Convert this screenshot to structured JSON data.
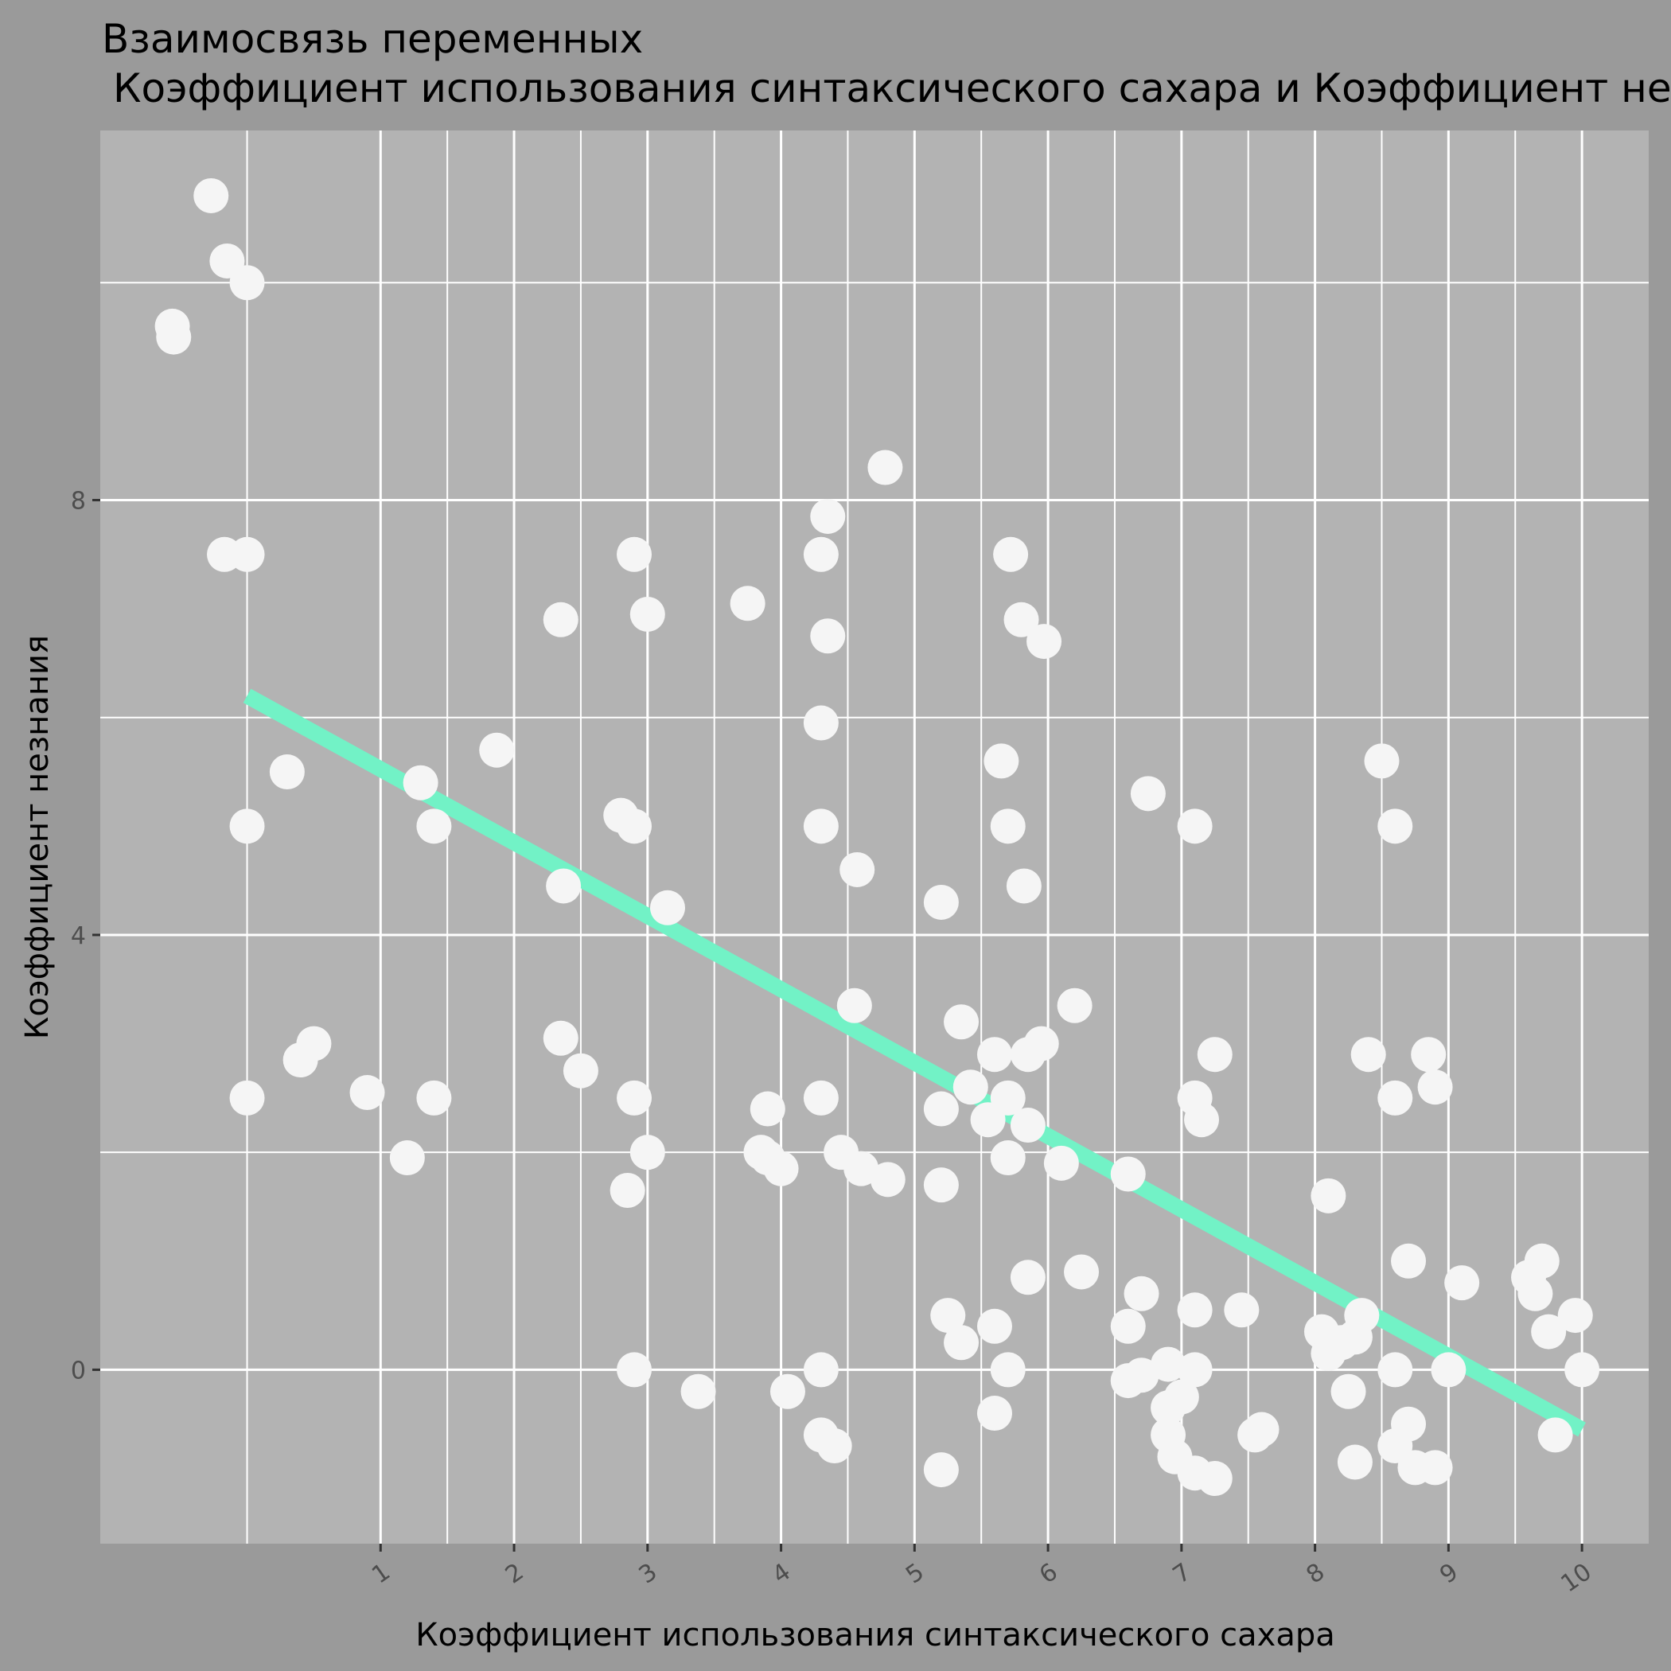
{
  "chart_data": {
    "type": "scatter",
    "title": "Взаимосвязь переменных",
    "subtitle": "Коэффициент использования синтаксического сахара и Коэффициент незнания",
    "xlabel": "Коэффициент использования синтаксического сахара",
    "ylabel": "Коэффициент незнания",
    "xlim": [
      -1.1,
      10.5
    ],
    "ylim": [
      -1.6,
      11.4
    ],
    "x_ticks": [
      1,
      2,
      3,
      4,
      5,
      6,
      7,
      8,
      9,
      10
    ],
    "y_ticks": [
      0,
      4,
      8
    ],
    "grid": true,
    "legend": "none",
    "colors": {
      "background": "#9a9a9a",
      "panel": "#b3b3b3",
      "grid": "#ffffff",
      "points": "#f5f5f5",
      "trend": "#72f2c6"
    },
    "trend_line": {
      "x": [
        0,
        10
      ],
      "y": [
        6.2,
        -0.55
      ]
    },
    "points": [
      {
        "x": -0.27,
        "y": 10.8
      },
      {
        "x": -0.15,
        "y": 10.2
      },
      {
        "x": 0.0,
        "y": 10.0
      },
      {
        "x": -0.56,
        "y": 9.6
      },
      {
        "x": -0.55,
        "y": 9.5
      },
      {
        "x": -0.17,
        "y": 7.5
      },
      {
        "x": 0.0,
        "y": 7.5
      },
      {
        "x": 0.3,
        "y": 5.5
      },
      {
        "x": 0.0,
        "y": 5.0
      },
      {
        "x": 0.5,
        "y": 3.0
      },
      {
        "x": 0.4,
        "y": 2.85
      },
      {
        "x": 0.0,
        "y": 2.5
      },
      {
        "x": 0.9,
        "y": 2.55
      },
      {
        "x": 1.2,
        "y": 1.95
      },
      {
        "x": 1.3,
        "y": 5.4
      },
      {
        "x": 1.4,
        "y": 5.0
      },
      {
        "x": 1.4,
        "y": 2.5
      },
      {
        "x": 1.87,
        "y": 5.7
      },
      {
        "x": 2.35,
        "y": 6.9
      },
      {
        "x": 2.37,
        "y": 4.45
      },
      {
        "x": 2.35,
        "y": 3.05
      },
      {
        "x": 2.5,
        "y": 2.75
      },
      {
        "x": 2.8,
        "y": 5.1
      },
      {
        "x": 2.9,
        "y": 5.0
      },
      {
        "x": 2.9,
        "y": 7.5
      },
      {
        "x": 3.0,
        "y": 6.95
      },
      {
        "x": 3.15,
        "y": 4.25
      },
      {
        "x": 2.9,
        "y": 2.5
      },
      {
        "x": 3.0,
        "y": 2.0
      },
      {
        "x": 2.85,
        "y": 1.65
      },
      {
        "x": 2.9,
        "y": 0.0
      },
      {
        "x": 3.38,
        "y": -0.2
      },
      {
        "x": 3.75,
        "y": 7.05
      },
      {
        "x": 3.85,
        "y": 2.0
      },
      {
        "x": 3.9,
        "y": 2.4
      },
      {
        "x": 3.9,
        "y": 1.95
      },
      {
        "x": 4.0,
        "y": 1.85
      },
      {
        "x": 4.05,
        "y": -0.2
      },
      {
        "x": 4.3,
        "y": 7.5
      },
      {
        "x": 4.35,
        "y": 7.85
      },
      {
        "x": 4.35,
        "y": 6.75
      },
      {
        "x": 4.3,
        "y": 5.95
      },
      {
        "x": 4.3,
        "y": 5.0
      },
      {
        "x": 4.57,
        "y": 4.6
      },
      {
        "x": 4.55,
        "y": 3.35
      },
      {
        "x": 4.3,
        "y": 2.5
      },
      {
        "x": 4.45,
        "y": 2.0
      },
      {
        "x": 4.6,
        "y": 1.85
      },
      {
        "x": 4.8,
        "y": 1.75
      },
      {
        "x": 4.3,
        "y": 0.0
      },
      {
        "x": 4.3,
        "y": -0.6
      },
      {
        "x": 4.4,
        "y": -0.7
      },
      {
        "x": 4.78,
        "y": 8.3
      },
      {
        "x": 5.2,
        "y": 4.3
      },
      {
        "x": 5.2,
        "y": 2.4
      },
      {
        "x": 5.2,
        "y": 1.7
      },
      {
        "x": 5.35,
        "y": 3.2
      },
      {
        "x": 5.42,
        "y": 2.6
      },
      {
        "x": 5.55,
        "y": 2.3
      },
      {
        "x": 5.25,
        "y": 0.5
      },
      {
        "x": 5.35,
        "y": 0.25
      },
      {
        "x": 5.2,
        "y": -0.92
      },
      {
        "x": 5.65,
        "y": 5.6
      },
      {
        "x": 5.72,
        "y": 7.5
      },
      {
        "x": 5.8,
        "y": 6.9
      },
      {
        "x": 5.97,
        "y": 6.7
      },
      {
        "x": 5.7,
        "y": 5.0
      },
      {
        "x": 5.82,
        "y": 4.45
      },
      {
        "x": 5.6,
        "y": 2.9
      },
      {
        "x": 5.85,
        "y": 2.9
      },
      {
        "x": 5.95,
        "y": 3.0
      },
      {
        "x": 5.7,
        "y": 2.5
      },
      {
        "x": 5.85,
        "y": 2.25
      },
      {
        "x": 5.7,
        "y": 1.95
      },
      {
        "x": 6.1,
        "y": 1.9
      },
      {
        "x": 6.2,
        "y": 3.35
      },
      {
        "x": 5.85,
        "y": 0.85
      },
      {
        "x": 5.6,
        "y": 0.4
      },
      {
        "x": 5.7,
        "y": 0.0
      },
      {
        "x": 5.6,
        "y": -0.4
      },
      {
        "x": 6.25,
        "y": 0.9
      },
      {
        "x": 6.6,
        "y": 1.8
      },
      {
        "x": 6.75,
        "y": 5.3
      },
      {
        "x": 6.7,
        "y": 0.7
      },
      {
        "x": 6.6,
        "y": 0.4
      },
      {
        "x": 6.6,
        "y": -0.1
      },
      {
        "x": 6.7,
        "y": -0.05
      },
      {
        "x": 6.9,
        "y": 0.05
      },
      {
        "x": 6.9,
        "y": -0.35
      },
      {
        "x": 7.0,
        "y": -0.25
      },
      {
        "x": 6.9,
        "y": -0.6
      },
      {
        "x": 6.95,
        "y": -0.8
      },
      {
        "x": 7.1,
        "y": 5.0
      },
      {
        "x": 7.1,
        "y": 2.5
      },
      {
        "x": 7.15,
        "y": 2.3
      },
      {
        "x": 7.25,
        "y": 2.9
      },
      {
        "x": 7.1,
        "y": 0.55
      },
      {
        "x": 7.1,
        "y": 0.0
      },
      {
        "x": 7.1,
        "y": -0.95
      },
      {
        "x": 7.25,
        "y": -1.0
      },
      {
        "x": 7.45,
        "y": 0.55
      },
      {
        "x": 7.55,
        "y": -0.6
      },
      {
        "x": 7.6,
        "y": -0.55
      },
      {
        "x": 8.1,
        "y": 1.6
      },
      {
        "x": 8.05,
        "y": 0.35
      },
      {
        "x": 8.1,
        "y": 0.15
      },
      {
        "x": 8.2,
        "y": 0.25
      },
      {
        "x": 8.3,
        "y": 0.3
      },
      {
        "x": 8.35,
        "y": 0.5
      },
      {
        "x": 8.25,
        "y": -0.2
      },
      {
        "x": 8.3,
        "y": -0.85
      },
      {
        "x": 8.4,
        "y": 2.9
      },
      {
        "x": 8.5,
        "y": 5.6
      },
      {
        "x": 8.6,
        "y": 5.0
      },
      {
        "x": 8.6,
        "y": 2.5
      },
      {
        "x": 8.6,
        "y": 0.0
      },
      {
        "x": 8.6,
        "y": -0.7
      },
      {
        "x": 8.7,
        "y": -0.5
      },
      {
        "x": 8.75,
        "y": -0.9
      },
      {
        "x": 8.7,
        "y": 1.0
      },
      {
        "x": 8.85,
        "y": 2.9
      },
      {
        "x": 8.9,
        "y": 2.6
      },
      {
        "x": 8.9,
        "y": -0.9
      },
      {
        "x": 9.0,
        "y": 0.0
      },
      {
        "x": 9.1,
        "y": 0.8
      },
      {
        "x": 9.6,
        "y": 0.85
      },
      {
        "x": 9.65,
        "y": 0.7
      },
      {
        "x": 9.7,
        "y": 1.0
      },
      {
        "x": 9.75,
        "y": 0.35
      },
      {
        "x": 9.8,
        "y": -0.6
      },
      {
        "x": 9.95,
        "y": 0.5
      },
      {
        "x": 10.0,
        "y": 0.0
      }
    ]
  }
}
